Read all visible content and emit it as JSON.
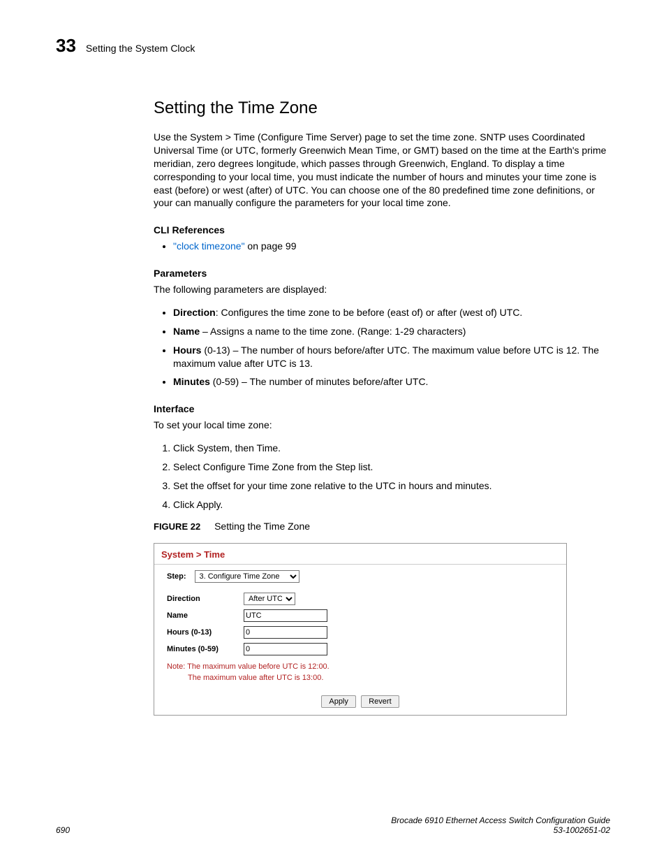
{
  "header": {
    "chapter_number": "33",
    "chapter_title": "Setting the System Clock"
  },
  "section": {
    "title": "Setting the Time Zone",
    "intro": "Use the System > Time (Configure Time Server) page to set the time zone. SNTP uses Coordinated Universal Time (or UTC, formerly Greenwich Mean Time, or GMT) based on the time at the Earth's prime meridian, zero degrees longitude, which passes through Greenwich, England. To display a time corresponding to your local time, you must indicate the number of hours and minutes your time zone is east (before) or west (after) of UTC. You can choose one of the 80 predefined time zone definitions, or your can manually configure the parameters for your local time zone."
  },
  "cli": {
    "heading": "CLI References",
    "link_text": "\"clock timezone\"",
    "link_suffix": " on page 99"
  },
  "params": {
    "heading": "Parameters",
    "intro": "The following parameters are displayed:",
    "items": [
      {
        "name": "Direction",
        "sep": ": ",
        "desc": "Configures the time zone to be before (east of) or after (west of) UTC."
      },
      {
        "name": "Name",
        "sep": " – ",
        "desc": "Assigns a name to the time zone. (Range: 1-29 characters)"
      },
      {
        "name": "Hours",
        "sep": " ",
        "desc": "(0-13) – The number of hours before/after UTC. The maximum value before UTC is 12. The maximum value after UTC is 13."
      },
      {
        "name": "Minutes",
        "sep": " ",
        "desc": "(0-59) – The number of minutes before/after UTC."
      }
    ]
  },
  "iface": {
    "heading": "Interface",
    "intro": "To set your local time zone:",
    "steps": [
      "Click System, then Time.",
      "Select Configure Time Zone from the Step list.",
      "Set the offset for your time zone relative to the UTC in hours and minutes.",
      "Click Apply."
    ]
  },
  "figure": {
    "label": "FIGURE 22",
    "caption": "Setting the Time Zone",
    "breadcrumb": "System > Time",
    "step_label": "Step:",
    "step_value": "3. Configure Time Zone",
    "rows": {
      "direction_label": "Direction",
      "direction_value": "After UTC",
      "name_label": "Name",
      "name_value": "UTC",
      "hours_label": "Hours (0-13)",
      "hours_value": "0",
      "minutes_label": "Minutes (0-59)",
      "minutes_value": "0"
    },
    "note_line1": "Note: The maximum value before UTC is 12:00.",
    "note_line2": "The maximum value after UTC is 13:00.",
    "apply_btn": "Apply",
    "revert_btn": "Revert"
  },
  "footer": {
    "page_num": "690",
    "doc_title": "Brocade 6910 Ethernet Access Switch Configuration Guide",
    "doc_num": "53-1002651-02"
  }
}
